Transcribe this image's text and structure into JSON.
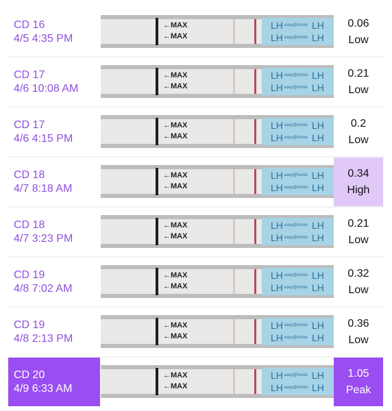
{
  "strip_text": {
    "max": "←MAX",
    "lh": "LH",
    "brand": "easy@home"
  },
  "rows": [
    {
      "cd": "CD 16",
      "time": "4/5 4:35 PM",
      "value": "0.06",
      "level": "Low"
    },
    {
      "cd": "CD 17",
      "time": "4/6 10:08 AM",
      "value": "0.21",
      "level": "Low"
    },
    {
      "cd": "CD 17",
      "time": "4/6 4:15 PM",
      "value": "0.2",
      "level": "Low"
    },
    {
      "cd": "CD 18",
      "time": "4/7 8:18 AM",
      "value": "0.34",
      "level": "High",
      "highlight": "light"
    },
    {
      "cd": "CD 18",
      "time": "4/7 3:23 PM",
      "value": "0.21",
      "level": "Low"
    },
    {
      "cd": "CD 19",
      "time": "4/8 7:02 AM",
      "value": "0.32",
      "level": "Low"
    },
    {
      "cd": "CD 19",
      "time": "4/8 2:13 PM",
      "value": "0.36",
      "level": "Low"
    },
    {
      "cd": "CD 20",
      "time": "4/9 6:33 AM",
      "value": "1.05",
      "level": "Peak",
      "highlight": "strong"
    }
  ]
}
